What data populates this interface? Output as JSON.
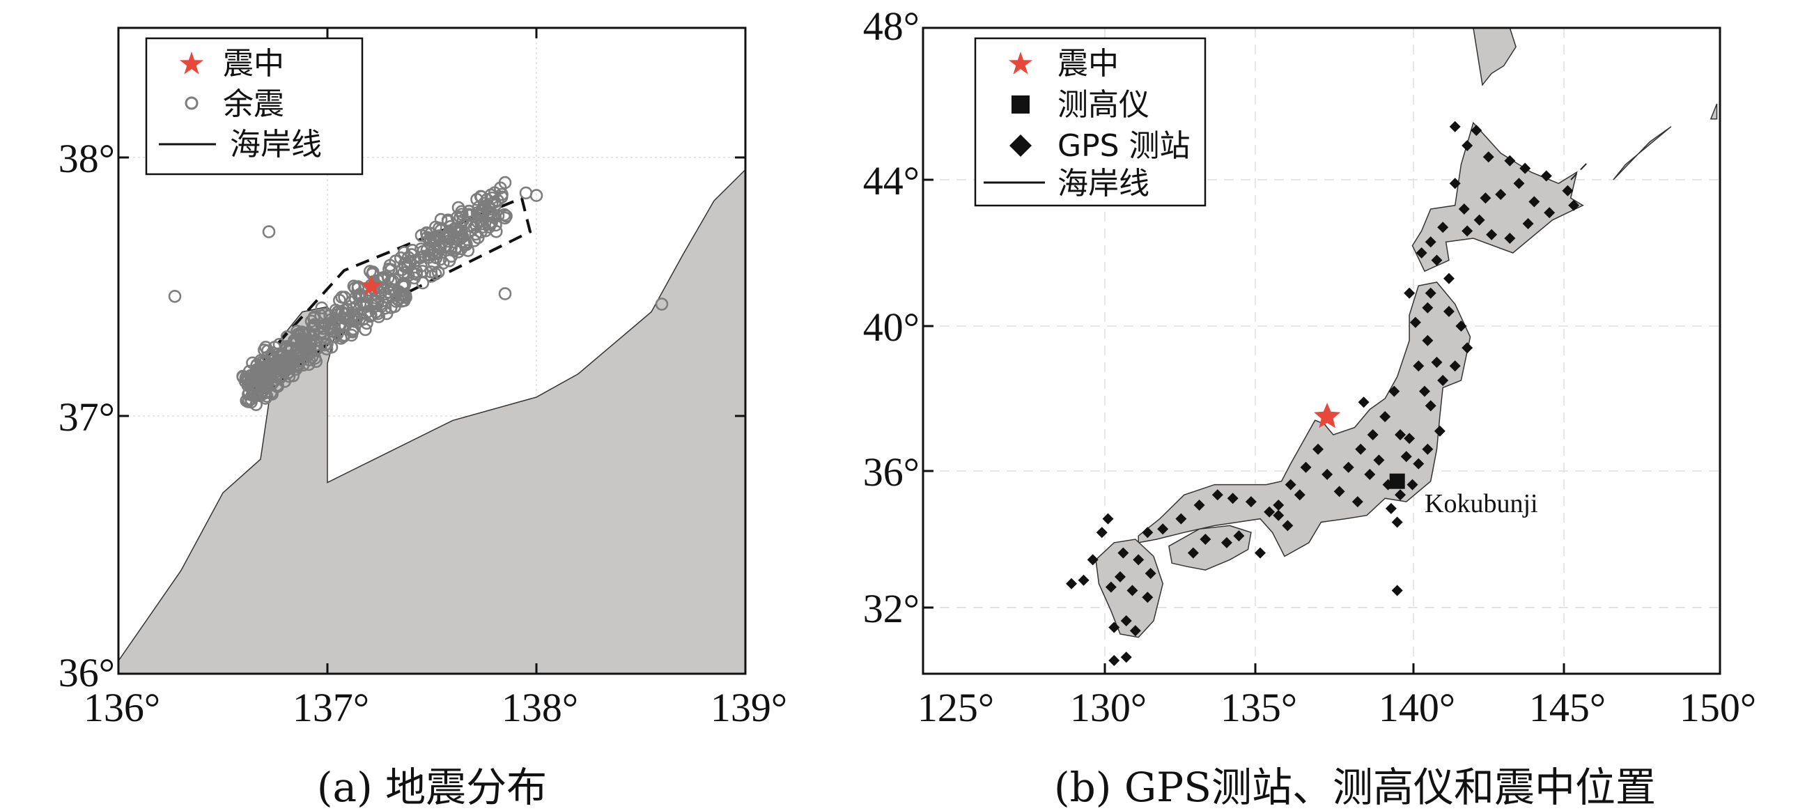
{
  "panel_a": {
    "caption": "(a) 地震分布",
    "legend": [
      {
        "symbol": "star",
        "label": "震中"
      },
      {
        "symbol": "circle",
        "label": "余震"
      },
      {
        "symbol": "line",
        "label": "海岸线"
      }
    ],
    "x_ticks": [
      "136°",
      "137°",
      "138°",
      "139°"
    ],
    "y_ticks": [
      "36°",
      "37°",
      "38°"
    ],
    "x_range": [
      136,
      139
    ],
    "y_range": [
      36,
      38.5
    ],
    "land_color": "#c9c6c6",
    "epicenter_color": "#e8483b",
    "aftershock_color": "#7d7d7d",
    "epicenter": [
      137.21,
      37.5
    ],
    "coastline": [
      [
        136,
        36.05
      ],
      [
        136.3,
        36.4
      ],
      [
        136.5,
        36.7
      ],
      [
        136.68,
        36.83
      ],
      [
        136.72,
        37.05
      ],
      [
        136.78,
        37.3
      ],
      [
        136.88,
        37.4
      ],
      [
        137.0,
        37.42
      ],
      [
        137.05,
        37.35
      ],
      [
        137.0,
        37.2
      ],
      [
        137.0,
        36.74
      ],
      [
        137.2,
        36.82
      ],
      [
        137.6,
        36.98
      ],
      [
        138.0,
        37.07
      ],
      [
        138.2,
        37.16
      ],
      [
        138.55,
        37.4
      ],
      [
        138.7,
        37.62
      ],
      [
        138.85,
        37.83
      ],
      [
        139.0,
        37.95
      ]
    ],
    "fault_zone": [
      [
        136.62,
        37.15
      ],
      [
        137.08,
        37.56
      ],
      [
        137.93,
        37.84
      ],
      [
        137.97,
        37.71
      ],
      [
        137.22,
        37.41
      ],
      [
        136.67,
        37.07
      ]
    ],
    "aftershocks_extra": [
      [
        136.27,
        37.46
      ],
      [
        136.72,
        37.71
      ],
      [
        137.85,
        37.47
      ],
      [
        137.95,
        37.86
      ],
      [
        138.0,
        37.85
      ],
      [
        138.6,
        37.43
      ],
      [
        137.85,
        37.9
      ]
    ]
  },
  "panel_b": {
    "caption": "(b) GPS测站、测高仪和震中位置",
    "legend": [
      {
        "symbol": "star",
        "label": "震中"
      },
      {
        "symbol": "square",
        "label": "测高仪"
      },
      {
        "symbol": "diamond",
        "label": "GPS 测站"
      },
      {
        "symbol": "line",
        "label": "海岸线"
      }
    ],
    "x_ticks": [
      "125°",
      "130°",
      "135°",
      "140°",
      "145°",
      "150°"
    ],
    "y_ticks": [
      "32°",
      "36°",
      "40°",
      "44°",
      "48°"
    ],
    "x_range": [
      125,
      150
    ],
    "y_range": [
      30,
      48
    ],
    "land_color": "#c9c6c6",
    "epicenter_color": "#e8483b",
    "epicenter": [
      137.2,
      37.5
    ],
    "tide_gauge": {
      "label": "Kokubunji",
      "lon": 139.5,
      "lat": 35.7
    },
    "honshu": [
      [
        131.0,
        34.1
      ],
      [
        131.7,
        34.6
      ],
      [
        132.5,
        35.3
      ],
      [
        133.5,
        35.6
      ],
      [
        134.5,
        35.6
      ],
      [
        135.2,
        35.6
      ],
      [
        135.7,
        35.7
      ],
      [
        136.0,
        36.2
      ],
      [
        136.4,
        36.8
      ],
      [
        136.8,
        37.4
      ],
      [
        137.1,
        37.3
      ],
      [
        137.4,
        37.0
      ],
      [
        138.1,
        37.2
      ],
      [
        138.6,
        37.7
      ],
      [
        139.1,
        38.0
      ],
      [
        139.5,
        38.6
      ],
      [
        139.9,
        39.6
      ],
      [
        139.9,
        40.3
      ],
      [
        140.2,
        41.1
      ],
      [
        140.8,
        41.2
      ],
      [
        141.4,
        40.6
      ],
      [
        141.9,
        39.7
      ],
      [
        141.6,
        38.5
      ],
      [
        141.0,
        38.3
      ],
      [
        140.9,
        37.5
      ],
      [
        140.8,
        36.6
      ],
      [
        140.6,
        35.7
      ],
      [
        139.8,
        35.1
      ],
      [
        139.1,
        35.2
      ],
      [
        138.5,
        34.7
      ],
      [
        137.8,
        34.6
      ],
      [
        137.0,
        34.5
      ],
      [
        136.6,
        33.9
      ],
      [
        135.8,
        33.5
      ],
      [
        135.4,
        34.2
      ],
      [
        135.0,
        34.6
      ],
      [
        133.5,
        34.4
      ],
      [
        132.5,
        34.2
      ],
      [
        131.6,
        34.0
      ],
      [
        131.0,
        33.9
      ]
    ],
    "kyushu": [
      [
        129.6,
        33.4
      ],
      [
        130.2,
        33.9
      ],
      [
        130.9,
        34.0
      ],
      [
        131.5,
        33.5
      ],
      [
        131.8,
        32.7
      ],
      [
        131.5,
        31.6
      ],
      [
        131.0,
        31.1
      ],
      [
        130.4,
        31.2
      ],
      [
        130.1,
        31.9
      ],
      [
        129.7,
        32.7
      ]
    ],
    "shikoku": [
      [
        132.0,
        33.8
      ],
      [
        133.0,
        34.3
      ],
      [
        134.0,
        34.4
      ],
      [
        134.7,
        34.2
      ],
      [
        134.6,
        33.7
      ],
      [
        134.0,
        33.4
      ],
      [
        133.2,
        33.1
      ],
      [
        132.6,
        33.2
      ],
      [
        132.1,
        33.3
      ]
    ],
    "hokkaido": [
      [
        140.0,
        42.2
      ],
      [
        140.3,
        42.6
      ],
      [
        140.6,
        43.2
      ],
      [
        141.4,
        43.3
      ],
      [
        141.6,
        44.4
      ],
      [
        142.0,
        45.5
      ],
      [
        142.9,
        44.7
      ],
      [
        143.9,
        44.2
      ],
      [
        144.8,
        43.9
      ],
      [
        145.4,
        44.2
      ],
      [
        145.2,
        43.5
      ],
      [
        145.6,
        43.3
      ],
      [
        144.6,
        42.9
      ],
      [
        143.3,
        42.0
      ],
      [
        142.0,
        42.4
      ],
      [
        141.1,
        42.3
      ],
      [
        141.2,
        41.8
      ],
      [
        140.4,
        41.5
      ]
    ],
    "sakhalin": [
      [
        142.0,
        48.0
      ],
      [
        142.3,
        46.5
      ],
      [
        142.6,
        46.8
      ],
      [
        143.0,
        47.0
      ],
      [
        143.4,
        47.5
      ],
      [
        143.2,
        48.0
      ]
    ],
    "kurils": [
      [
        146.6,
        44.0
      ],
      [
        147.8,
        45.0
      ],
      [
        148.5,
        45.4
      ],
      [
        147.0,
        44.4
      ]
    ],
    "kuril_tip": [
      [
        149.8,
        45.6
      ],
      [
        150.0,
        46.0
      ],
      [
        150.0,
        45.6
      ]
    ],
    "gps_stations": [
      [
        141.4,
        45.4
      ],
      [
        142.1,
        45.3
      ],
      [
        141.8,
        44.9
      ],
      [
        142.5,
        44.6
      ],
      [
        143.2,
        44.5
      ],
      [
        143.7,
        44.3
      ],
      [
        144.4,
        44.1
      ],
      [
        145.1,
        43.7
      ],
      [
        145.3,
        43.3
      ],
      [
        144.5,
        43.1
      ],
      [
        143.8,
        42.8
      ],
      [
        143.2,
        42.4
      ],
      [
        142.6,
        42.5
      ],
      [
        142.2,
        42.9
      ],
      [
        141.7,
        43.2
      ],
      [
        141.4,
        43.9
      ],
      [
        142.9,
        43.6
      ],
      [
        143.5,
        43.9
      ],
      [
        144.0,
        43.4
      ],
      [
        142.4,
        43.5
      ],
      [
        141.8,
        42.6
      ],
      [
        141.0,
        42.7
      ],
      [
        140.6,
        42.3
      ],
      [
        140.3,
        42.0
      ],
      [
        140.8,
        41.8
      ],
      [
        141.2,
        41.3
      ],
      [
        140.6,
        40.9
      ],
      [
        141.2,
        40.4
      ],
      [
        141.6,
        40.0
      ],
      [
        141.8,
        39.4
      ],
      [
        141.4,
        38.9
      ],
      [
        141.0,
        38.5
      ],
      [
        140.4,
        38.2
      ],
      [
        140.2,
        38.9
      ],
      [
        140.5,
        39.6
      ],
      [
        140.1,
        40.1
      ],
      [
        140.5,
        40.5
      ],
      [
        139.9,
        40.9
      ],
      [
        140.8,
        39.0
      ],
      [
        140.6,
        37.8
      ],
      [
        140.9,
        37.1
      ],
      [
        140.5,
        36.6
      ],
      [
        140.2,
        36.2
      ],
      [
        140.0,
        35.6
      ],
      [
        139.6,
        35.3
      ],
      [
        139.2,
        35.6
      ],
      [
        139.8,
        36.4
      ],
      [
        139.6,
        37.0
      ],
      [
        139.1,
        37.5
      ],
      [
        138.7,
        37.0
      ],
      [
        138.3,
        36.6
      ],
      [
        137.9,
        36.1
      ],
      [
        138.6,
        35.9
      ],
      [
        138.2,
        35.1
      ],
      [
        137.6,
        35.4
      ],
      [
        137.2,
        35.9
      ],
      [
        136.9,
        36.6
      ],
      [
        136.5,
        36.1
      ],
      [
        136.0,
        35.6
      ],
      [
        135.6,
        35.0
      ],
      [
        135.9,
        34.4
      ],
      [
        135.3,
        34.8
      ],
      [
        134.7,
        35.1
      ],
      [
        134.1,
        35.2
      ],
      [
        133.6,
        35.3
      ],
      [
        133.0,
        35.0
      ],
      [
        132.4,
        34.6
      ],
      [
        131.8,
        34.3
      ],
      [
        131.3,
        34.2
      ],
      [
        133.2,
        34.0
      ],
      [
        133.9,
        33.9
      ],
      [
        134.3,
        34.1
      ],
      [
        132.8,
        33.6
      ],
      [
        130.5,
        33.6
      ],
      [
        131.0,
        33.4
      ],
      [
        131.4,
        33.0
      ],
      [
        131.3,
        32.3
      ],
      [
        130.8,
        32.5
      ],
      [
        130.4,
        32.9
      ],
      [
        130.1,
        32.6
      ],
      [
        130.6,
        31.6
      ],
      [
        130.9,
        31.3
      ],
      [
        130.2,
        31.4
      ],
      [
        128.8,
        32.7
      ],
      [
        129.2,
        32.8
      ],
      [
        129.5,
        33.4
      ],
      [
        130.0,
        34.6
      ],
      [
        129.8,
        34.2
      ],
      [
        130.2,
        30.4
      ],
      [
        130.6,
        30.5
      ],
      [
        135.0,
        33.6
      ],
      [
        135.6,
        34.7
      ],
      [
        136.3,
        35.3
      ],
      [
        138.4,
        37.9
      ],
      [
        139.4,
        38.2
      ],
      [
        138.9,
        36.3
      ],
      [
        139.9,
        36.9
      ],
      [
        139.3,
        34.9
      ],
      [
        139.5,
        34.5
      ],
      [
        139.5,
        32.5
      ]
    ]
  }
}
